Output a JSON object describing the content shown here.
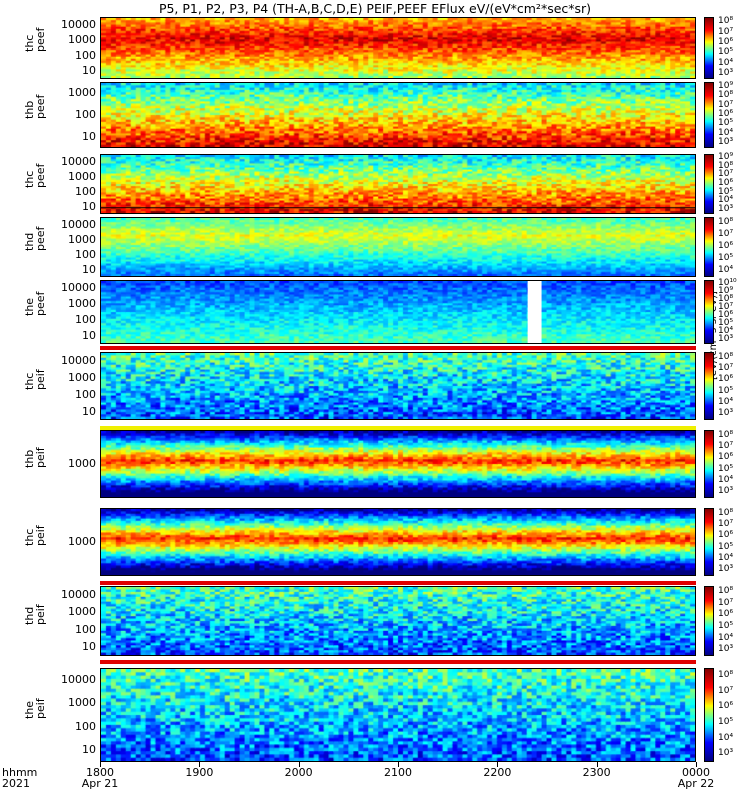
{
  "title": "P5, P1, P2, P3, P4 (TH-A,B,C,D,E) PEIF,PEEF EFlux eV/(eV*cm²*sec*sr)",
  "x_axis": {
    "row_label_1": "hhmm",
    "row_label_2": "2021",
    "ticks": [
      {
        "label": "1800",
        "sub": "Apr 21"
      },
      {
        "label": "1900",
        "sub": ""
      },
      {
        "label": "2000",
        "sub": ""
      },
      {
        "label": "2100",
        "sub": ""
      },
      {
        "label": "2200",
        "sub": ""
      },
      {
        "label": "2300",
        "sub": ""
      },
      {
        "label": "0000",
        "sub": "Apr 22"
      }
    ]
  },
  "colorbar_unit": "[eV/(cm²-s-sr-eV)]",
  "colors": {
    "hi": "#e00000",
    "mid": "#f0f000",
    "low": "#00d0ff",
    "base": "#2020a0"
  },
  "chart_data": {
    "type": "heatmap",
    "x_range": [
      "2021-04-21 18:00",
      "2021-04-22 00:00"
    ],
    "y_scale": "log",
    "panels": [
      {
        "probe": "thc",
        "product": "peef",
        "yticks": [
          "10000",
          "1000",
          "100",
          "10"
        ],
        "ylim": [
          5,
          30000
        ],
        "cbar": [
          "10⁸",
          "10⁷",
          "10⁶",
          "10⁵",
          "10⁴",
          "10³"
        ]
      },
      {
        "probe": "thb",
        "product": "peef",
        "yticks": [
          "1000",
          "100",
          "10"
        ],
        "ylim": [
          5,
          3000
        ],
        "cbar": [
          "10⁹",
          "10⁸",
          "10⁷",
          "10⁶",
          "10⁵",
          "10⁴",
          "10³"
        ]
      },
      {
        "probe": "thc",
        "product": "peef",
        "yticks": [
          "10000",
          "1000",
          "100",
          "10"
        ],
        "ylim": [
          5,
          30000
        ],
        "cbar": [
          "10⁹",
          "10⁸",
          "10⁷",
          "10⁶",
          "10⁵",
          "10⁴",
          "10³"
        ]
      },
      {
        "probe": "thd",
        "product": "peef",
        "yticks": [
          "10000",
          "1000",
          "100",
          "10"
        ],
        "ylim": [
          5,
          30000
        ],
        "cbar": [
          "10⁸",
          "10⁷",
          "10⁶",
          "10⁵",
          "10⁴"
        ]
      },
      {
        "probe": "the",
        "product": "peef",
        "yticks": [
          "10000",
          "1000",
          "100",
          "10"
        ],
        "ylim": [
          5,
          30000
        ],
        "cbar": [
          "10¹⁰",
          "10⁹",
          "10⁸",
          "10⁷",
          "10⁶",
          "10⁵",
          "10⁴",
          "10³"
        ]
      },
      {
        "probe": "thc",
        "product": "peif",
        "yticks": [
          "10000",
          "1000",
          "100",
          "10"
        ],
        "ylim": [
          5,
          30000
        ],
        "cbar": [
          "10⁸",
          "10⁷",
          "10⁶",
          "10⁵",
          "10⁴",
          "10³"
        ]
      },
      {
        "probe": "thb",
        "product": "peif",
        "yticks": [
          "1000"
        ],
        "ylim": [
          200,
          30000
        ],
        "cbar": [
          "10⁸",
          "10⁷",
          "10⁶",
          "10⁵",
          "10⁴",
          "10³"
        ]
      },
      {
        "probe": "thc",
        "product": "peif",
        "yticks": [
          "1000"
        ],
        "ylim": [
          200,
          30000
        ],
        "cbar": [
          "10⁸",
          "10⁷",
          "10⁶",
          "10⁵",
          "10⁴",
          "10³"
        ]
      },
      {
        "probe": "thd",
        "product": "peif",
        "yticks": [
          "10000",
          "1000",
          "100",
          "10"
        ],
        "ylim": [
          5,
          30000
        ],
        "cbar": [
          "10⁸",
          "10⁷",
          "10⁶",
          "10⁵",
          "10⁴",
          "10³"
        ]
      },
      {
        "probe": "the",
        "product": "peif",
        "yticks": [
          "10000",
          "1000",
          "100",
          "10"
        ],
        "ylim": [
          5,
          30000
        ],
        "cbar": [
          "10⁸",
          "10⁷",
          "10⁶",
          "10⁵",
          "10⁴",
          "10³"
        ]
      }
    ]
  }
}
